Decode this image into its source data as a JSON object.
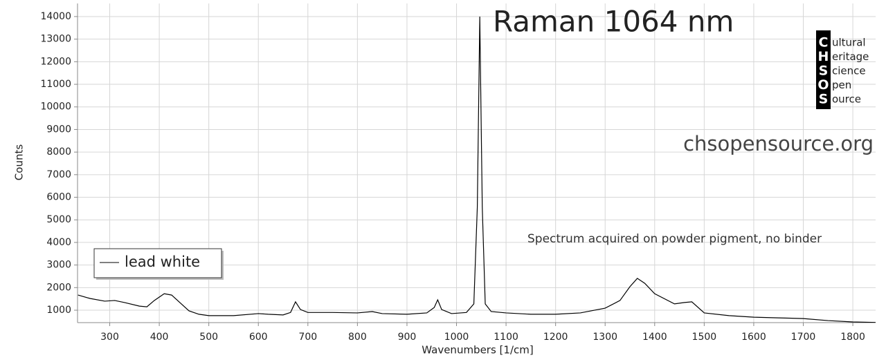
{
  "chart_data": {
    "type": "line",
    "title": "Raman 1064 nm",
    "x_label": "Wavenumbers [1/cm]",
    "y_label": "Counts",
    "annotations": [
      "chsopensource.org",
      "Spectrum acquired on powder pigment, no binder"
    ],
    "logo": {
      "letters": [
        "C",
        "H",
        "S",
        "O",
        "S"
      ],
      "words": [
        "ultural",
        "eritage",
        "cience",
        "pen",
        "ource"
      ]
    },
    "x": [
      236,
      260,
      290,
      310,
      330,
      360,
      375,
      390,
      410,
      425,
      440,
      460,
      480,
      500,
      550,
      600,
      620,
      650,
      665,
      675,
      685,
      700,
      750,
      800,
      830,
      850,
      900,
      940,
      955,
      962,
      970,
      990,
      1020,
      1035,
      1042,
      1047,
      1052,
      1058,
      1070,
      1100,
      1150,
      1200,
      1250,
      1300,
      1330,
      1350,
      1365,
      1380,
      1400,
      1440,
      1460,
      1475,
      1500,
      1550,
      1600,
      1650,
      1700,
      1750,
      1800,
      1846
    ],
    "series": [
      {
        "name": "lead white",
        "color": "#000000",
        "values": [
          1670,
          1520,
          1400,
          1430,
          1340,
          1180,
          1150,
          1430,
          1730,
          1670,
          1370,
          970,
          820,
          760,
          760,
          850,
          820,
          790,
          900,
          1370,
          1030,
          900,
          900,
          880,
          940,
          850,
          820,
          880,
          1120,
          1460,
          1030,
          850,
          900,
          1280,
          5560,
          14000,
          5560,
          1280,
          940,
          880,
          820,
          820,
          880,
          1090,
          1430,
          2040,
          2410,
          2190,
          1730,
          1280,
          1340,
          1370,
          880,
          760,
          690,
          660,
          630,
          540,
          480,
          460
        ]
      }
    ],
    "xlim": [
      235,
      1846
    ],
    "ylim": [
      450,
      14580
    ],
    "xticks": [
      300,
      400,
      500,
      600,
      700,
      800,
      900,
      1000,
      1100,
      1200,
      1300,
      1400,
      1500,
      1600,
      1700,
      1800
    ],
    "yticks": [
      1000,
      2000,
      3000,
      4000,
      5000,
      6000,
      7000,
      8000,
      9000,
      10000,
      11000,
      12000,
      13000,
      14000
    ],
    "grid": true,
    "legend_position": "lower left"
  }
}
